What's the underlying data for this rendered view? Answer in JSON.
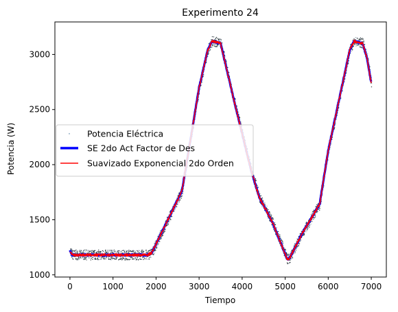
{
  "chart_data": {
    "type": "line",
    "title": "Experimento 24",
    "xlabel": "Tiempo",
    "ylabel": "Potencia (W)",
    "xlim": [
      -350,
      7350
    ],
    "ylim": [
      980,
      3295
    ],
    "xticks": [
      0,
      1000,
      2000,
      3000,
      4000,
      5000,
      6000,
      7000
    ],
    "yticks": [
      1000,
      1500,
      2000,
      2500,
      3000
    ],
    "legend_position": "center-left",
    "series": [
      {
        "name": "Potencia Eléctrica",
        "kind": "scatter-noisy",
        "color": "#1f77b4",
        "noise_band": 45,
        "x": [
          0,
          50,
          1800,
          1900,
          2200,
          2600,
          2700,
          3000,
          3200,
          3300,
          3400,
          3500,
          3800,
          4200,
          4400,
          4700,
          5050,
          5100,
          5400,
          5800,
          6000,
          6500,
          6600,
          6800,
          6900,
          7000
        ],
        "values": [
          1220,
          1180,
          1180,
          1200,
          1440,
          1760,
          1990,
          2700,
          3040,
          3120,
          3110,
          3100,
          2600,
          1960,
          1700,
          1480,
          1140,
          1150,
          1380,
          1640,
          2130,
          3040,
          3120,
          3100,
          2970,
          2740
        ]
      },
      {
        "name": "SE 2do Act Factor de Des",
        "kind": "line",
        "color": "#0000ff",
        "x": [
          0,
          50,
          1800,
          1900,
          2200,
          2600,
          2700,
          3000,
          3200,
          3300,
          3400,
          3500,
          3800,
          4200,
          4400,
          4700,
          5050,
          5100,
          5400,
          5800,
          6000,
          6500,
          6600,
          6800,
          6900,
          7000
        ],
        "values": [
          1220,
          1180,
          1180,
          1200,
          1440,
          1760,
          1990,
          2700,
          3040,
          3120,
          3110,
          3100,
          2600,
          1960,
          1700,
          1480,
          1140,
          1150,
          1380,
          1640,
          2130,
          3040,
          3120,
          3100,
          2970,
          2740
        ]
      },
      {
        "name": "Suavizado Exponencial 2do Orden",
        "kind": "line",
        "color": "#ff0000",
        "x": [
          0,
          50,
          1800,
          1900,
          2200,
          2600,
          2700,
          3000,
          3200,
          3300,
          3400,
          3500,
          3800,
          4200,
          4400,
          4700,
          5050,
          5100,
          5400,
          5800,
          6000,
          6500,
          6600,
          6800,
          6900,
          7000
        ],
        "values": [
          1215,
          1180,
          1180,
          1200,
          1440,
          1760,
          1990,
          2700,
          3040,
          3120,
          3110,
          3100,
          2600,
          1960,
          1700,
          1480,
          1140,
          1150,
          1380,
          1640,
          2130,
          3040,
          3120,
          3100,
          2970,
          2740
        ]
      }
    ]
  }
}
